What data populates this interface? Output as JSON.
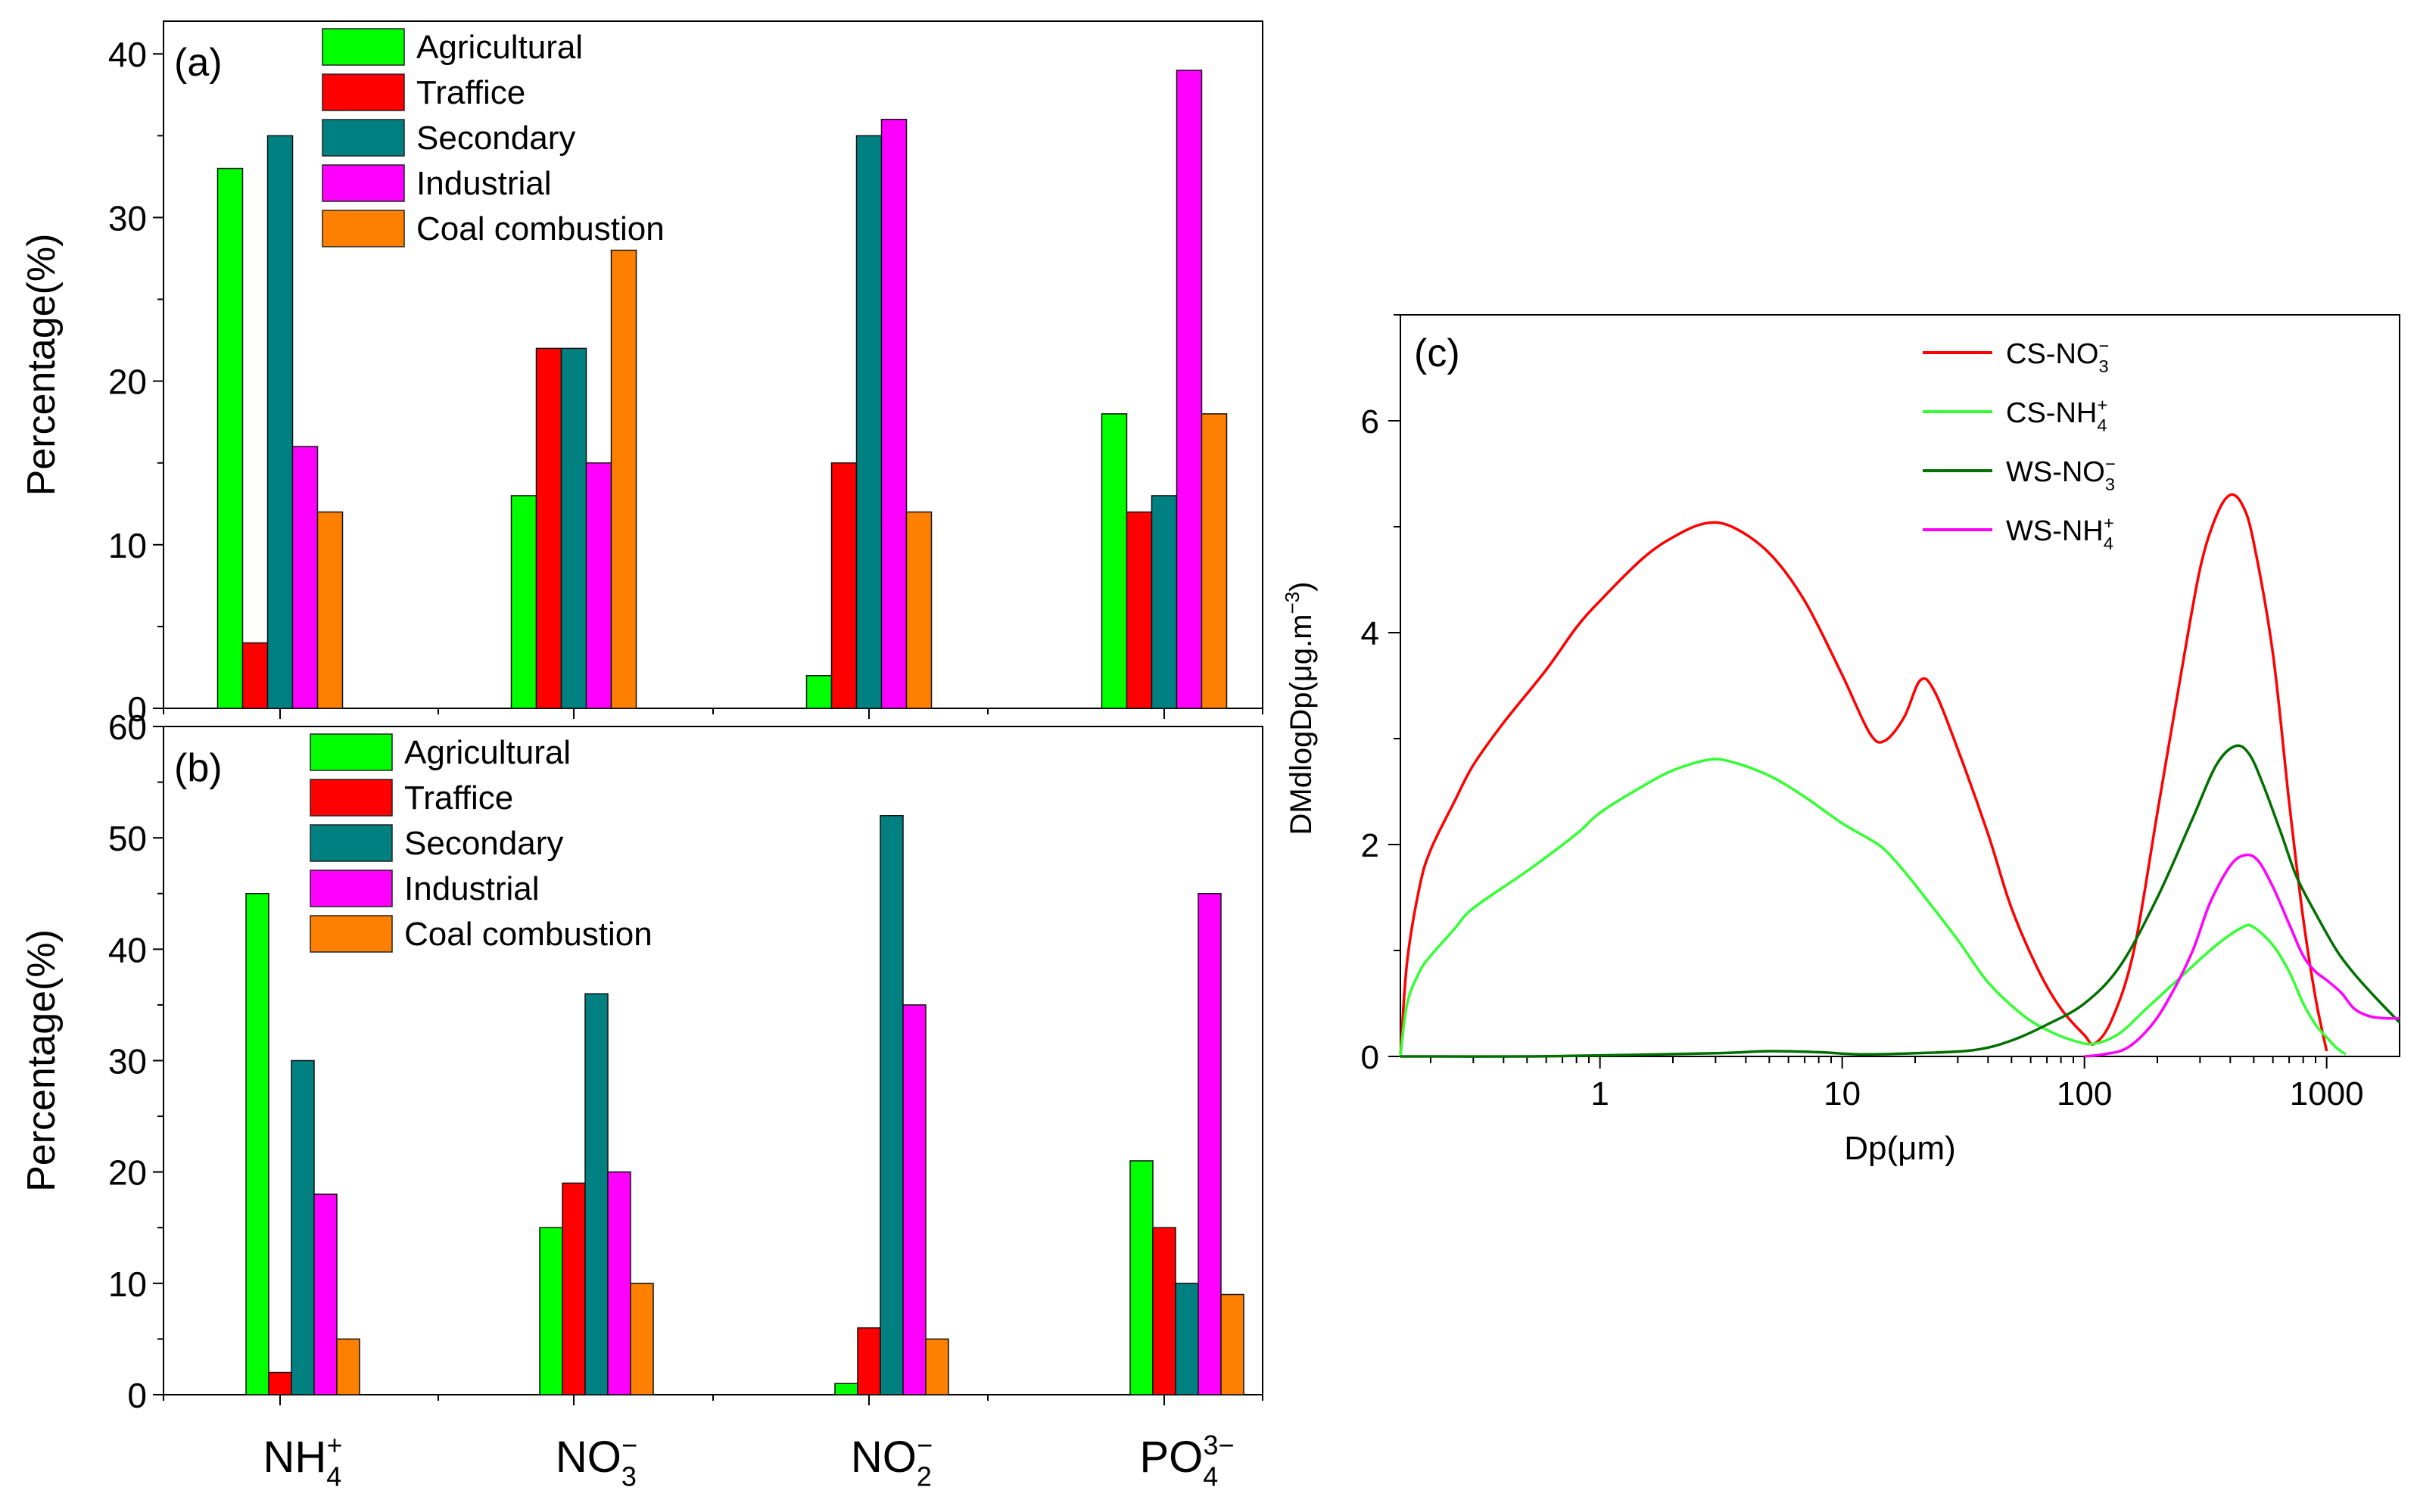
{
  "chart_data": [
    {
      "panel": "(a)",
      "type": "bar",
      "categories": [
        {
          "base": "NH",
          "sub": "4",
          "sup": "+"
        },
        {
          "base": "NO",
          "sub": "3",
          "sup": "−"
        },
        {
          "base": "NO",
          "sub": "2",
          "sup": "−"
        },
        {
          "base": "PO",
          "sub": "4",
          "sup": "3−"
        }
      ],
      "series": [
        {
          "name": "Agricultural",
          "color": "#00ff00",
          "values": [
            33,
            13,
            2,
            18
          ]
        },
        {
          "name": "Traffice",
          "color": "#ff0000",
          "values": [
            4,
            22,
            15,
            12
          ]
        },
        {
          "name": "Secondary",
          "color": "#008080",
          "values": [
            35,
            22,
            35,
            13
          ]
        },
        {
          "name": "Industrial",
          "color": "#ff00ff",
          "values": [
            16,
            15,
            36,
            39
          ]
        },
        {
          "name": "Coal combustion",
          "color": "#ff8000",
          "values": [
            12,
            28,
            12,
            18
          ]
        }
      ],
      "ylabel": "Percentage(%)",
      "ylim": [
        0,
        42
      ],
      "yticks": [
        "0",
        "10",
        "20",
        "30",
        "40"
      ]
    },
    {
      "panel": "(b)",
      "type": "bar",
      "categories": [
        {
          "base": "NH",
          "sub": "4",
          "sup": "+"
        },
        {
          "base": "NO",
          "sub": "3",
          "sup": "−"
        },
        {
          "base": "NO",
          "sub": "2",
          "sup": "−"
        },
        {
          "base": "PO",
          "sub": "4",
          "sup": "3−"
        }
      ],
      "series": [
        {
          "name": "Agricultural",
          "color": "#00ff00",
          "values": [
            45,
            15,
            1,
            21
          ]
        },
        {
          "name": "Traffice",
          "color": "#ff0000",
          "values": [
            2,
            19,
            6,
            15
          ]
        },
        {
          "name": "Secondary",
          "color": "#008080",
          "values": [
            30,
            36,
            52,
            10
          ]
        },
        {
          "name": "Industrial",
          "color": "#ff00ff",
          "values": [
            18,
            20,
            35,
            45
          ]
        },
        {
          "name": "Coal combustion",
          "color": "#ff8000",
          "values": [
            5,
            10,
            5,
            9
          ]
        }
      ],
      "ylabel": "Percentage(%)",
      "ylim": [
        0,
        60
      ],
      "yticks": [
        "0",
        "10",
        "20",
        "30",
        "40",
        "50",
        "60"
      ]
    },
    {
      "panel": "(c)",
      "type": "line",
      "xscale": "log",
      "xlabel": "Dp(μm)",
      "ylabel": "DMdlogDp(μg.m",
      "ylabel_sup": "−3",
      "ylabel_end": ")",
      "xlim": [
        0.15,
        2000
      ],
      "ylim": [
        0,
        7
      ],
      "xticks": [
        "1",
        "10",
        "100",
        "1000"
      ],
      "yticks": [
        "0",
        "2",
        "4",
        "6"
      ],
      "series": [
        {
          "name": "CS-NO",
          "sub": "3",
          "sup": "−",
          "color": "#ff0000",
          "points": [
            [
              0.15,
              0
            ],
            [
              0.16,
              0.9
            ],
            [
              0.18,
              1.6
            ],
            [
              0.2,
              1.95
            ],
            [
              0.25,
              2.4
            ],
            [
              0.3,
              2.75
            ],
            [
              0.4,
              3.15
            ],
            [
              0.6,
              3.65
            ],
            [
              0.8,
              4.05
            ],
            [
              1,
              4.3
            ],
            [
              1.5,
              4.7
            ],
            [
              2,
              4.9
            ],
            [
              2.7,
              5.03
            ],
            [
              3.5,
              5.0
            ],
            [
              5,
              4.75
            ],
            [
              7,
              4.3
            ],
            [
              10,
              3.6
            ],
            [
              13,
              3.05
            ],
            [
              15,
              2.98
            ],
            [
              18,
              3.2
            ],
            [
              21,
              3.55
            ],
            [
              24,
              3.45
            ],
            [
              30,
              2.9
            ],
            [
              40,
              2.1
            ],
            [
              50,
              1.4
            ],
            [
              65,
              0.8
            ],
            [
              80,
              0.45
            ],
            [
              100,
              0.2
            ],
            [
              110,
              0.12
            ],
            [
              130,
              0.35
            ],
            [
              160,
              1.0
            ],
            [
              200,
              2.3
            ],
            [
              250,
              3.6
            ],
            [
              300,
              4.6
            ],
            [
              350,
              5.1
            ],
            [
              400,
              5.3
            ],
            [
              450,
              5.2
            ],
            [
              500,
              4.85
            ],
            [
              600,
              3.8
            ],
            [
              700,
              2.4
            ],
            [
              800,
              1.3
            ],
            [
              900,
              0.55
            ],
            [
              1000,
              0.05
            ]
          ]
        },
        {
          "name": "CS-NH",
          "sub": "4",
          "sup": "+",
          "color": "#33ff33",
          "points": [
            [
              0.15,
              0
            ],
            [
              0.16,
              0.5
            ],
            [
              0.18,
              0.8
            ],
            [
              0.2,
              0.95
            ],
            [
              0.25,
              1.2
            ],
            [
              0.3,
              1.4
            ],
            [
              0.5,
              1.75
            ],
            [
              0.8,
              2.1
            ],
            [
              1,
              2.3
            ],
            [
              1.5,
              2.55
            ],
            [
              2,
              2.7
            ],
            [
              2.8,
              2.8
            ],
            [
              3.5,
              2.78
            ],
            [
              5,
              2.65
            ],
            [
              7,
              2.45
            ],
            [
              10,
              2.2
            ],
            [
              13,
              2.05
            ],
            [
              15,
              1.95
            ],
            [
              18,
              1.75
            ],
            [
              22,
              1.5
            ],
            [
              30,
              1.1
            ],
            [
              40,
              0.7
            ],
            [
              55,
              0.4
            ],
            [
              70,
              0.25
            ],
            [
              90,
              0.15
            ],
            [
              110,
              0.12
            ],
            [
              140,
              0.22
            ],
            [
              180,
              0.45
            ],
            [
              250,
              0.75
            ],
            [
              350,
              1.05
            ],
            [
              450,
              1.22
            ],
            [
              500,
              1.22
            ],
            [
              600,
              1.05
            ],
            [
              700,
              0.8
            ],
            [
              800,
              0.5
            ],
            [
              900,
              0.3
            ],
            [
              1000,
              0.18
            ],
            [
              1100,
              0.08
            ],
            [
              1200,
              0.02
            ]
          ]
        },
        {
          "name": "WS-NO",
          "sub": "3",
          "sup": "−",
          "color": "#007000",
          "points": [
            [
              0.15,
              0
            ],
            [
              0.5,
              0
            ],
            [
              1,
              0.01
            ],
            [
              3,
              0.03
            ],
            [
              5,
              0.05
            ],
            [
              8,
              0.04
            ],
            [
              12,
              0.02
            ],
            [
              20,
              0.03
            ],
            [
              35,
              0.06
            ],
            [
              50,
              0.15
            ],
            [
              70,
              0.3
            ],
            [
              100,
              0.5
            ],
            [
              140,
              0.85
            ],
            [
              200,
              1.5
            ],
            [
              280,
              2.25
            ],
            [
              350,
              2.75
            ],
            [
              420,
              2.93
            ],
            [
              480,
              2.85
            ],
            [
              550,
              2.55
            ],
            [
              650,
              2.1
            ],
            [
              750,
              1.7
            ],
            [
              900,
              1.35
            ],
            [
              1100,
              1.0
            ],
            [
              1300,
              0.78
            ],
            [
              1600,
              0.55
            ],
            [
              2000,
              0.32
            ]
          ]
        },
        {
          "name": "WS-NH",
          "sub": "4",
          "sup": "+",
          "color": "#ff00ff",
          "points": [
            [
              100,
              0
            ],
            [
              120,
              0.02
            ],
            [
              150,
              0.08
            ],
            [
              190,
              0.3
            ],
            [
              230,
              0.6
            ],
            [
              280,
              1.0
            ],
            [
              330,
              1.45
            ],
            [
              400,
              1.8
            ],
            [
              460,
              1.9
            ],
            [
              520,
              1.85
            ],
            [
              600,
              1.6
            ],
            [
              700,
              1.25
            ],
            [
              800,
              0.95
            ],
            [
              900,
              0.8
            ],
            [
              1000,
              0.72
            ],
            [
              1150,
              0.6
            ],
            [
              1300,
              0.45
            ],
            [
              1500,
              0.38
            ],
            [
              1750,
              0.36
            ],
            [
              2000,
              0.36
            ]
          ]
        }
      ]
    }
  ]
}
